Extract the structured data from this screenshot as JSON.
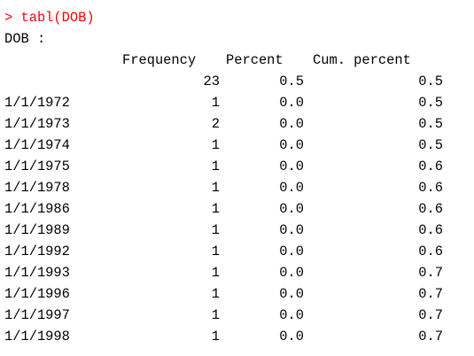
{
  "console": {
    "command": "> tabl(DOB)",
    "variable_header": "DOB :",
    "column_headers": {
      "frequency": "Frequency",
      "percent": "Percent",
      "cum_percent": "Cum. percent"
    },
    "rows": [
      {
        "label": "",
        "frequency": "23",
        "percent": "0.5",
        "cum_percent": "0.5"
      },
      {
        "label": "1/1/1972",
        "frequency": "1",
        "percent": "0.0",
        "cum_percent": "0.5"
      },
      {
        "label": "1/1/1973",
        "frequency": "2",
        "percent": "0.0",
        "cum_percent": "0.5"
      },
      {
        "label": "1/1/1974",
        "frequency": "1",
        "percent": "0.0",
        "cum_percent": "0.5"
      },
      {
        "label": "1/1/1975",
        "frequency": "1",
        "percent": "0.0",
        "cum_percent": "0.6"
      },
      {
        "label": "1/1/1978",
        "frequency": "1",
        "percent": "0.0",
        "cum_percent": "0.6"
      },
      {
        "label": "1/1/1986",
        "frequency": "1",
        "percent": "0.0",
        "cum_percent": "0.6"
      },
      {
        "label": "1/1/1989",
        "frequency": "1",
        "percent": "0.0",
        "cum_percent": "0.6"
      },
      {
        "label": "1/1/1992",
        "frequency": "1",
        "percent": "0.0",
        "cum_percent": "0.6"
      },
      {
        "label": "1/1/1993",
        "frequency": "1",
        "percent": "0.0",
        "cum_percent": "0.7"
      },
      {
        "label": "1/1/1996",
        "frequency": "1",
        "percent": "0.0",
        "cum_percent": "0.7"
      },
      {
        "label": "1/1/1997",
        "frequency": "1",
        "percent": "0.0",
        "cum_percent": "0.7"
      },
      {
        "label": "1/1/1998",
        "frequency": "1",
        "percent": "0.0",
        "cum_percent": "0.7"
      }
    ],
    "colors": {
      "command": "#ff0000",
      "output": "#000000",
      "background": "#ffffff"
    }
  }
}
